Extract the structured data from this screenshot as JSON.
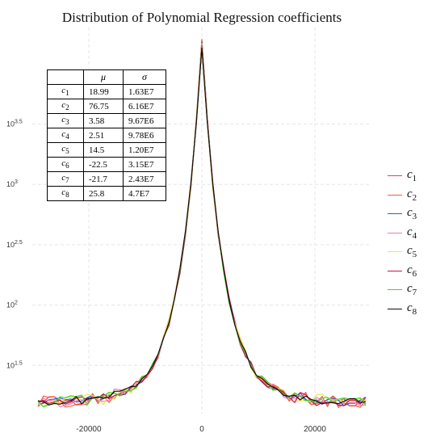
{
  "chart_data": {
    "type": "line",
    "title": "Distribution of Polynomial Regression coefficients",
    "xlabel": "",
    "ylabel": "",
    "xlim": [
      -30000,
      30000
    ],
    "ylim": [
      1.1,
      4.3
    ],
    "x_scale": "linear",
    "y_scale": "log10",
    "x_ticks": [
      -20000,
      0,
      20000
    ],
    "x_tick_labels": [
      "-20000",
      "0",
      "20000"
    ],
    "y_ticks": [
      1.5,
      2,
      2.5,
      3,
      3.5
    ],
    "y_tick_labels": [
      {
        "base": "10",
        "exp": "1.5"
      },
      {
        "base": "10",
        "exp": "2"
      },
      {
        "base": "10",
        "exp": "2.5"
      },
      {
        "base": "10",
        "exp": "3"
      },
      {
        "base": "10",
        "exp": "3.5"
      }
    ],
    "grid": true,
    "legend_position": "right",
    "series": [
      {
        "name": "c",
        "sub": "1",
        "color": "#e8405a",
        "jitter": 0.04
      },
      {
        "name": "c",
        "sub": "2",
        "color": "#f2603c",
        "jitter": 0.05
      },
      {
        "name": "c",
        "sub": "3",
        "color": "#2b5fd9",
        "jitter": 0.035
      },
      {
        "name": "c",
        "sub": "4",
        "color": "#f07ab0",
        "jitter": 0.045
      },
      {
        "name": "c",
        "sub": "5",
        "color": "#e6e84a",
        "jitter": 0.05
      },
      {
        "name": "c",
        "sub": "6",
        "color": "#d0104a",
        "jitter": 0.04
      },
      {
        "name": "c",
        "sub": "7",
        "color": "#3cd628",
        "jitter": 0.04
      },
      {
        "name": "c",
        "sub": "8",
        "color": "#1a0a0a",
        "jitter": 0.03
      }
    ],
    "peak_log10": 4.2,
    "floor_log10": 1.2
  },
  "table": {
    "headers": [
      "",
      "μ",
      "σ"
    ],
    "rows": [
      {
        "coef": "c",
        "sub": "1",
        "mu": "18.99",
        "sigma": "1.63E7"
      },
      {
        "coef": "c",
        "sub": "2",
        "mu": "76.75",
        "sigma": "6.16E7"
      },
      {
        "coef": "c",
        "sub": "3",
        "mu": "3.58",
        "sigma": "9.67E6"
      },
      {
        "coef": "c",
        "sub": "4",
        "mu": "2.51",
        "sigma": "9.78E6"
      },
      {
        "coef": "c",
        "sub": "5",
        "mu": "14.5",
        "sigma": "1.20E7"
      },
      {
        "coef": "c",
        "sub": "6",
        "mu": "-22.5",
        "sigma": "3.15E7"
      },
      {
        "coef": "c",
        "sub": "7",
        "mu": "-21.7",
        "sigma": "2.43E7"
      },
      {
        "coef": "c",
        "sub": "8",
        "mu": "25.8",
        "sigma": "4.7E7"
      }
    ]
  }
}
